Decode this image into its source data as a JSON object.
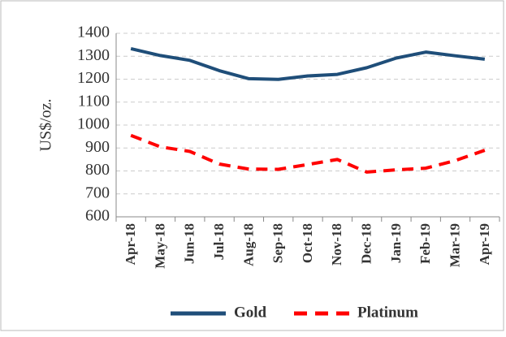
{
  "chart_data": {
    "type": "line",
    "y_label": "US$/oz.",
    "categories": [
      "Apr-18",
      "May-18",
      "Jun-18",
      "Jul-18",
      "Aug-18",
      "Sep-18",
      "Oct-18",
      "Nov-18",
      "Dec-18",
      "Jan-19",
      "Feb-19",
      "Mar-19",
      "Apr-19"
    ],
    "series": [
      {
        "name": "Gold",
        "color": "#1f4e79",
        "dashed": false,
        "values": [
          1333,
          1303,
          1282,
          1237,
          1202,
          1199,
          1214,
          1221,
          1250,
          1292,
          1318,
          1302,
          1287
        ]
      },
      {
        "name": "Platinum",
        "color": "#ff0000",
        "dashed": true,
        "values": [
          955,
          905,
          885,
          830,
          808,
          807,
          828,
          850,
          795,
          805,
          812,
          845,
          890
        ]
      }
    ],
    "ylim": [
      600,
      1400
    ],
    "yticks": [
      600,
      700,
      800,
      900,
      1000,
      1100,
      1200,
      1300,
      1400
    ],
    "grid": true,
    "legend": "bottom"
  }
}
